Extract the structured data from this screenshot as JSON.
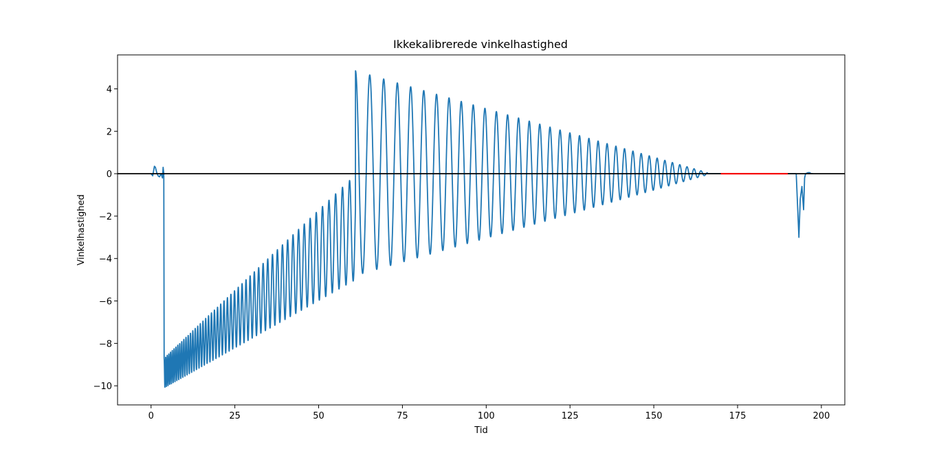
{
  "chart_data": {
    "type": "line",
    "title": "Ikkekalibrerede vinkelhastighed",
    "xlabel": "Tid",
    "ylabel": "Vinkelhastighed",
    "xlim": [
      -10,
      207
    ],
    "ylim": [
      -10.9,
      5.6
    ],
    "xticks": [
      0,
      25,
      50,
      75,
      100,
      125,
      150,
      175,
      200
    ],
    "yticks": [
      -10,
      -8,
      -6,
      -4,
      -2,
      0,
      2,
      4
    ],
    "xtick_labels": [
      "0",
      "25",
      "50",
      "75",
      "100",
      "125",
      "150",
      "175",
      "200"
    ],
    "ytick_labels": [
      "−10",
      "−8",
      "−6",
      "−4",
      "−2",
      "0",
      "2",
      "4"
    ],
    "grid": false,
    "series": [
      {
        "color": "#1f77b4",
        "style": "oscillating line",
        "segments": [
          {
            "x": [
              0,
              0.5,
              1.0,
              1.3,
              1.7,
              2.1,
              2.5,
              3.0,
              3.4,
              3.6,
              3.8
            ],
            "y": [
              0,
              -0.1,
              0.35,
              0.3,
              0.05,
              -0.1,
              -0.15,
              0.0,
              -0.2,
              0.3,
              0.0
            ]
          },
          {
            "note": "decaying oscillation",
            "x_start": 3.9,
            "x_end": 61.0,
            "period_start": 0.45,
            "period_end": 2.2,
            "upper_start": -8.7,
            "upper_end": -0.05,
            "lower_start": -10.1,
            "lower_end": -5.0
          },
          {
            "note": "decaying oscillation",
            "x_start": 61.0,
            "x_end": 166.0,
            "period_start": 4.3,
            "period_end": 2.0,
            "upper_start": 4.85,
            "upper_end": 0.05,
            "lower_start": -4.8,
            "lower_end": -0.05
          },
          {
            "x": [
              166,
              170
            ],
            "y": [
              0,
              0
            ]
          },
          {
            "x": [
              190,
              192.5,
              193.3,
              193.7,
              194.2,
              194.7,
              195.0,
              195.3,
              196.0,
              196.5,
              197.0,
              197.5
            ],
            "y": [
              0,
              0,
              -3.0,
              -1.2,
              -0.6,
              -1.7,
              -0.2,
              0.0,
              0.05,
              0.05,
              0.0,
              0.0
            ]
          }
        ]
      },
      {
        "color": "#ff0000",
        "x": [
          170,
          190
        ],
        "y": [
          0,
          0
        ]
      }
    ],
    "reference_line": {
      "y": 0,
      "color": "#000000"
    }
  }
}
